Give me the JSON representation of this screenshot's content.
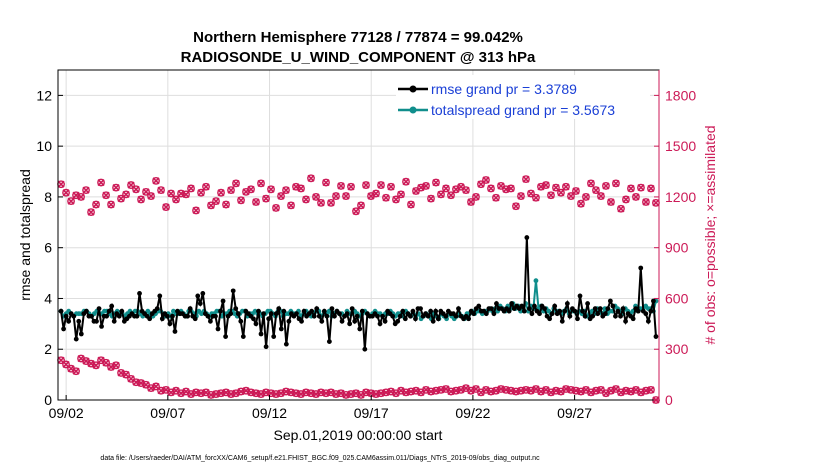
{
  "chart_data": {
    "type": "line",
    "title": "Northern Hemisphere 77128 / 77874 = 99.042%",
    "subtitle": "RADIOSONDE_U_WIND_COMPONENT @ 313 hPa",
    "xlabel": "Sep.01,2019 00:00:00 start",
    "ylabel": "rmse and totalspread",
    "ylabel_right": "# of obs: o=possible; ×=assimilated",
    "footnote": "data file: /Users/raeder/DAI/ATM_forcXX/CAM6_setup/f.e21.FHIST_BGC.f09_025.CAM6assim.011/Diags_NTrS_2019-09/obs_diag_output.nc",
    "xlim": [
      1.6,
      31.15
    ],
    "ylim": [
      0,
      13
    ],
    "ylim_right": [
      0,
      1950
    ],
    "x_ticks": [
      2,
      7,
      12,
      17,
      22,
      27
    ],
    "x_tick_labels": [
      "09/02",
      "09/07",
      "09/12",
      "09/17",
      "09/22",
      "09/27"
    ],
    "y_ticks": [
      0,
      2,
      4,
      6,
      8,
      10,
      12
    ],
    "y_tick_labels": [
      "0",
      "2",
      "4",
      "6",
      "8",
      "10",
      "12"
    ],
    "y_right_ticks": [
      0,
      300,
      600,
      900,
      1200,
      1500,
      1800
    ],
    "y_right_tick_labels": [
      "0",
      "300",
      "600",
      "900",
      "1200",
      "1500",
      "1800"
    ],
    "grid": true,
    "legend_position": "top-right",
    "colors": {
      "rmse": "#000000",
      "spread": "#108e8c",
      "obs": "#cc1a57",
      "right_axis": "#cc1a57"
    },
    "series": [
      {
        "name": "rmse grand pr = 3.3789",
        "values": [
          3.5,
          2.8,
          3.3,
          3.1,
          3.4,
          3.3,
          2.4,
          3.1,
          2.6,
          3.4,
          3.5,
          3.3,
          3.3,
          3.1,
          3.1,
          3.6,
          2.9,
          3.3,
          3.3,
          3.5,
          3.7,
          3.1,
          3.4,
          3.3,
          3.5,
          3.1,
          3.2,
          3.3,
          3.4,
          3.3,
          3.3,
          4.2,
          3.5,
          3.4,
          3.3,
          3.2,
          3.4,
          3.5,
          3.6,
          4.1,
          3.2,
          3.4,
          3.3,
          3.0,
          3.3,
          2.7,
          3.5,
          3.4,
          3.4,
          3.3,
          3.3,
          3.6,
          3.3,
          3.2,
          4.1,
          3.8,
          4.2,
          3.4,
          3.3,
          3.1,
          3.3,
          3.3,
          2.8,
          3.5,
          3.9,
          2.5,
          3.3,
          3.4,
          4.3,
          3.6,
          3.4,
          3.1,
          2.5,
          3.5,
          3.4,
          3.3,
          3.2,
          3.0,
          3.5,
          2.6,
          3.4,
          2.1,
          3.2,
          3.4,
          2.5,
          3.4,
          3.6,
          2.8,
          3.5,
          2.2,
          3.1,
          3.4,
          3.3,
          3.4,
          3.2,
          3.1,
          3.5,
          3.3,
          3.4,
          3.5,
          3.3,
          3.6,
          3.3,
          3.1,
          3.5,
          3.3,
          2.3,
          3.6,
          3.3,
          3.5,
          3.4,
          3.1,
          3.3,
          3.4,
          3.0,
          3.6,
          3.1,
          3.3,
          2.8,
          3.5,
          2.0,
          3.4,
          3.3,
          3.3,
          3.4,
          3.3,
          3.0,
          3.3,
          3.1,
          3.5,
          3.4,
          3.3,
          3.0,
          3.1,
          3.3,
          3.5,
          3.2,
          3.4,
          3.3,
          3.5,
          3.2,
          3.6,
          3.6,
          3.3,
          3.4,
          3.3,
          3.5,
          3.1,
          3.5,
          3.2,
          3.5,
          3.4,
          3.3,
          3.5,
          3.4,
          3.4,
          3.3,
          3.6,
          3.3,
          3.2,
          3.3,
          3.2,
          3.5,
          3.4,
          3.6,
          3.7,
          3.5,
          3.5,
          3.4,
          3.6,
          3.6,
          3.4,
          3.8,
          3.6,
          3.6,
          3.5,
          3.6,
          3.5,
          3.8,
          3.6,
          3.7,
          3.6,
          3.7,
          3.5,
          6.4,
          3.6,
          3.4,
          3.7,
          3.5,
          3.4,
          3.7,
          3.6,
          3.3,
          3.2,
          3.4,
          3.7,
          3.4,
          3.5,
          3.1,
          3.5,
          3.8,
          3.3,
          3.6,
          3.5,
          3.2,
          4.1,
          3.5,
          3.3,
          3.8,
          3.2,
          3.3,
          3.6,
          3.4,
          3.6,
          3.3,
          3.4,
          3.6,
          3.9,
          3.7,
          3.3,
          3.5,
          3.3,
          3.6,
          3.1,
          3.4,
          3.3,
          3.2,
          3.6,
          3.5,
          5.2,
          3.5,
          3.4,
          3.1,
          3.5,
          3.9,
          2.5
        ]
      },
      {
        "name": "totalspread grand pr = 3.5673",
        "values": [
          3.5,
          3.3,
          3.4,
          3.5,
          3.4,
          3.3,
          3.4,
          3.4,
          3.4,
          3.5,
          3.5,
          3.4,
          3.3,
          3.4,
          3.5,
          3.4,
          3.4,
          3.5,
          3.5,
          3.4,
          3.3,
          3.4,
          3.5,
          3.4,
          3.4,
          3.3,
          3.4,
          3.5,
          3.4,
          3.5,
          3.5,
          3.4,
          3.3,
          3.4,
          3.5,
          3.4,
          3.3,
          3.4,
          3.5,
          3.5,
          3.4,
          3.3,
          3.4,
          3.3,
          3.5,
          3.4,
          3.4,
          3.5,
          3.4,
          3.3,
          3.5,
          3.5,
          3.4,
          3.3,
          3.5,
          3.4,
          3.5,
          3.4,
          3.3,
          3.4,
          3.4,
          3.5,
          3.5,
          3.3,
          3.4,
          3.4,
          3.5,
          3.5,
          3.4,
          3.3,
          3.4,
          3.5,
          3.5,
          3.3,
          3.4,
          3.4,
          3.5,
          3.4,
          3.4,
          3.3,
          3.4,
          3.5,
          3.5,
          3.4,
          3.3,
          3.5,
          3.5,
          3.3,
          3.4,
          3.4,
          3.5,
          3.4,
          3.4,
          3.5,
          3.3,
          3.4,
          3.5,
          3.4,
          3.3,
          3.4,
          3.5,
          3.5,
          3.3,
          3.4,
          3.4,
          3.5,
          3.3,
          3.4,
          3.5,
          3.4,
          3.4,
          3.3,
          3.5,
          3.4,
          3.4,
          3.5,
          3.4,
          3.3,
          3.4,
          3.5,
          3.4,
          3.3,
          3.4,
          3.5,
          3.4,
          3.4,
          3.3,
          3.4,
          3.4,
          3.5,
          3.4,
          3.3,
          3.4,
          3.4,
          3.3,
          3.5,
          3.4,
          3.3,
          3.4,
          3.3,
          3.4,
          3.2,
          3.3,
          3.4,
          3.3,
          3.2,
          3.4,
          3.3,
          3.2,
          3.4,
          3.3,
          3.2,
          3.4,
          3.3,
          3.2,
          3.3,
          3.4,
          3.3,
          3.2,
          3.4,
          3.4,
          3.5,
          3.4,
          3.5,
          3.5,
          3.4,
          3.5,
          3.5,
          3.6,
          3.5,
          3.6,
          3.5,
          3.7,
          3.6,
          3.5,
          3.7,
          3.6,
          3.8,
          3.6,
          3.7,
          3.5,
          3.6,
          3.8,
          3.5,
          3.7,
          3.6,
          4.7,
          3.6,
          3.7,
          3.5,
          3.6,
          3.5,
          3.4,
          3.6,
          3.5,
          3.5,
          3.4,
          3.5,
          3.6,
          3.4,
          3.5,
          3.5,
          3.4,
          3.5,
          3.4,
          3.5,
          3.3,
          3.4,
          3.5,
          3.4,
          3.6,
          3.5,
          3.4,
          3.6,
          3.4,
          3.5,
          3.5,
          3.7,
          3.6,
          3.5,
          3.4,
          3.6,
          3.5,
          3.4,
          3.5,
          3.7,
          3.5,
          3.6,
          3.6,
          3.7,
          3.6,
          3.6,
          3.5,
          3.9
        ]
      }
    ],
    "obs_possible": [
      1275,
      1225,
      1175,
      1210,
      1200,
      1240,
      1110,
      1155,
      1285,
      1210,
      1155,
      1255,
      1190,
      1215,
      1270,
      1245,
      1185,
      1230,
      1205,
      1295,
      1240,
      1140,
      1220,
      1185,
      1220,
      1215,
      1250,
      1120,
      1225,
      1260,
      1150,
      1175,
      1225,
      1155,
      1240,
      1280,
      1180,
      1230,
      1245,
      1170,
      1280,
      1190,
      1245,
      1135,
      1205,
      1240,
      1150,
      1260,
      1250,
      1185,
      1310,
      1200,
      1165,
      1285,
      1165,
      1205,
      1265,
      1205,
      1260,
      1115,
      1150,
      1270,
      1205,
      1220,
      1270,
      1195,
      1260,
      1185,
      1215,
      1290,
      1155,
      1235,
      1255,
      1265,
      1190,
      1285,
      1215,
      1250,
      1210,
      1245,
      1260,
      1240,
      1170,
      1200,
      1275,
      1300,
      1250,
      1195,
      1265,
      1245,
      1250,
      1145,
      1205,
      1305,
      1220,
      1195,
      1260,
      1270,
      1210,
      1255,
      1225,
      1260,
      1205,
      1235,
      1160,
      1200,
      1280,
      1240,
      1205,
      1265,
      1170,
      1280,
      1130,
      1185,
      1250,
      1200,
      1255,
      1170,
      1250,
      1165
    ],
    "obs_assimilated": [
      235,
      210,
      185,
      170,
      245,
      230,
      215,
      205,
      235,
      220,
      195,
      205,
      160,
      150,
      125,
      105,
      100,
      90,
      70,
      80,
      55,
      60,
      45,
      55,
      40,
      50,
      35,
      45,
      40,
      45,
      30,
      35,
      40,
      45,
      35,
      40,
      50,
      55,
      45,
      40,
      35,
      45,
      40,
      35,
      40,
      50,
      45,
      40,
      35,
      45,
      40,
      35,
      45,
      40,
      45,
      35,
      40,
      30,
      35,
      40,
      30,
      45,
      40,
      35,
      40,
      45,
      50,
      40,
      55,
      45,
      50,
      55,
      45,
      60,
      50,
      55,
      60,
      65,
      50,
      55,
      60,
      70,
      55,
      65,
      45,
      60,
      50,
      55,
      65,
      60,
      55,
      50,
      55,
      60,
      55,
      65,
      50,
      60,
      45,
      55,
      50,
      65,
      60,
      55,
      50,
      60,
      45,
      55,
      60,
      40,
      55,
      65,
      45,
      55,
      50,
      60,
      45,
      55,
      60,
      0
    ]
  }
}
